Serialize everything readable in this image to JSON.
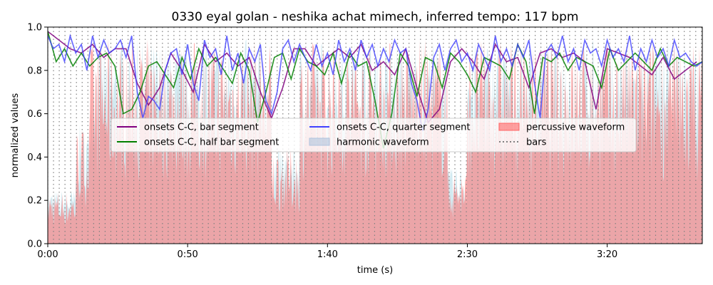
{
  "chart_data": {
    "type": "line",
    "title": "0330 eyal golan - neshika achat mimech, inferred tempo: 117 bpm",
    "xlabel": "time (s)",
    "ylabel": "normalized values",
    "xlim": [
      0,
      234
    ],
    "ylim": [
      0,
      1.0
    ],
    "x_ticks": [
      {
        "value": 0,
        "label": "0:00"
      },
      {
        "value": 50,
        "label": "0:50"
      },
      {
        "value": 100,
        "label": "1:40"
      },
      {
        "value": 150,
        "label": "2:30"
      },
      {
        "value": 200,
        "label": "3:20"
      }
    ],
    "y_ticks": [
      {
        "value": 0.0,
        "label": "0.0"
      },
      {
        "value": 0.2,
        "label": "0.2"
      },
      {
        "value": 0.4,
        "label": "0.4"
      },
      {
        "value": 0.6,
        "label": "0.6"
      },
      {
        "value": 0.8,
        "label": "0.8"
      },
      {
        "value": 1.0,
        "label": "1.0"
      }
    ],
    "tempo_bpm": 117,
    "bar_interval_s": 2.05,
    "grid": false,
    "legend_position": "center",
    "legend": [
      {
        "label": "onsets C-C, bar segment",
        "kind": "line",
        "color": "#800080"
      },
      {
        "label": "onsets C-C, half bar segment",
        "kind": "line",
        "color": "#008000"
      },
      {
        "label": "onsets C-C, quarter segment",
        "kind": "line",
        "color": "#4040ff"
      },
      {
        "label": "harmonic waveform",
        "kind": "area",
        "color": "#b0c4de"
      },
      {
        "label": "percussive waveform",
        "kind": "area",
        "color": "#ff6666"
      },
      {
        "label": "bars",
        "kind": "dotted",
        "color": "#808080"
      }
    ],
    "series": [
      {
        "name": "onsets C-C, bar segment",
        "color": "#800080",
        "x": [
          0,
          4,
          8,
          12,
          16,
          20,
          24,
          28,
          32,
          36,
          40,
          44,
          48,
          52,
          56,
          60,
          64,
          68,
          72,
          76,
          80,
          84,
          88,
          92,
          96,
          100,
          104,
          108,
          112,
          116,
          120,
          124,
          128,
          132,
          136,
          140,
          144,
          148,
          152,
          156,
          160,
          164,
          168,
          172,
          176,
          180,
          184,
          188,
          192,
          196,
          200,
          204,
          208,
          212,
          216,
          220,
          224,
          228,
          232
        ],
        "y": [
          0.98,
          0.94,
          0.9,
          0.88,
          0.92,
          0.86,
          0.9,
          0.9,
          0.74,
          0.64,
          0.72,
          0.88,
          0.8,
          0.7,
          0.92,
          0.84,
          0.88,
          0.82,
          0.86,
          0.7,
          0.58,
          0.72,
          0.9,
          0.9,
          0.82,
          0.86,
          0.9,
          0.86,
          0.92,
          0.8,
          0.84,
          0.78,
          0.9,
          0.72,
          0.56,
          0.62,
          0.84,
          0.9,
          0.84,
          0.76,
          0.92,
          0.84,
          0.86,
          0.72,
          0.88,
          0.9,
          0.86,
          0.88,
          0.84,
          0.62,
          0.9,
          0.88,
          0.86,
          0.82,
          0.78,
          0.86,
          0.76,
          0.8,
          0.84
        ]
      },
      {
        "name": "onsets C-C, half bar segment",
        "color": "#008000",
        "x": [
          0,
          3,
          6,
          9,
          12,
          15,
          18,
          21,
          24,
          27,
          30,
          33,
          36,
          39,
          42,
          45,
          48,
          51,
          54,
          57,
          60,
          63,
          66,
          69,
          72,
          75,
          78,
          81,
          84,
          87,
          90,
          93,
          96,
          99,
          102,
          105,
          108,
          111,
          114,
          117,
          120,
          123,
          126,
          129,
          132,
          135,
          138,
          141,
          144,
          147,
          150,
          153,
          156,
          159,
          162,
          165,
          168,
          171,
          174,
          177,
          180,
          183,
          186,
          189,
          192,
          195,
          198,
          201,
          204,
          207,
          210,
          213,
          216,
          219,
          222,
          225,
          228,
          231,
          234
        ],
        "y": [
          0.98,
          0.84,
          0.9,
          0.82,
          0.88,
          0.82,
          0.86,
          0.88,
          0.82,
          0.6,
          0.62,
          0.7,
          0.82,
          0.84,
          0.78,
          0.72,
          0.86,
          0.76,
          0.9,
          0.82,
          0.86,
          0.8,
          0.74,
          0.88,
          0.8,
          0.56,
          0.7,
          0.86,
          0.88,
          0.76,
          0.9,
          0.84,
          0.82,
          0.78,
          0.88,
          0.74,
          0.88,
          0.82,
          0.84,
          0.66,
          0.44,
          0.6,
          0.88,
          0.82,
          0.68,
          0.86,
          0.84,
          0.72,
          0.88,
          0.84,
          0.78,
          0.7,
          0.86,
          0.84,
          0.82,
          0.76,
          0.92,
          0.84,
          0.6,
          0.86,
          0.84,
          0.88,
          0.8,
          0.86,
          0.84,
          0.82,
          0.72,
          0.9,
          0.8,
          0.84,
          0.88,
          0.84,
          0.8,
          0.9,
          0.82,
          0.86,
          0.84,
          0.82,
          0.84
        ]
      },
      {
        "name": "onsets C-C, quarter segment",
        "color": "#4040ff",
        "x": [
          0,
          2,
          4,
          6,
          8,
          10,
          12,
          14,
          16,
          18,
          20,
          22,
          24,
          26,
          28,
          30,
          32,
          34,
          36,
          38,
          40,
          42,
          44,
          46,
          48,
          50,
          52,
          54,
          56,
          58,
          60,
          62,
          64,
          66,
          68,
          70,
          72,
          74,
          76,
          78,
          80,
          82,
          84,
          86,
          88,
          90,
          92,
          94,
          96,
          98,
          100,
          102,
          104,
          106,
          108,
          110,
          112,
          114,
          116,
          118,
          120,
          122,
          124,
          126,
          128,
          130,
          132,
          134,
          136,
          138,
          140,
          142,
          144,
          146,
          148,
          150,
          152,
          154,
          156,
          158,
          160,
          162,
          164,
          166,
          168,
          170,
          172,
          174,
          176,
          178,
          180,
          182,
          184,
          186,
          188,
          190,
          192,
          194,
          196,
          198,
          200,
          202,
          204,
          206,
          208,
          210,
          212,
          214,
          216,
          218,
          220,
          222,
          224,
          226,
          228,
          230,
          232,
          234
        ],
        "y": [
          0.96,
          0.9,
          0.92,
          0.84,
          0.96,
          0.88,
          0.92,
          0.8,
          0.96,
          0.86,
          0.94,
          0.88,
          0.9,
          0.94,
          0.86,
          0.96,
          0.7,
          0.58,
          0.68,
          0.66,
          0.62,
          0.8,
          0.88,
          0.9,
          0.78,
          0.92,
          0.74,
          0.66,
          0.94,
          0.86,
          0.9,
          0.78,
          0.96,
          0.8,
          0.88,
          0.74,
          0.9,
          0.84,
          0.92,
          0.66,
          0.6,
          0.7,
          0.9,
          0.94,
          0.84,
          0.92,
          0.86,
          0.8,
          0.92,
          0.82,
          0.88,
          0.78,
          0.94,
          0.84,
          0.9,
          0.8,
          0.94,
          0.86,
          0.92,
          0.82,
          0.9,
          0.84,
          0.94,
          0.88,
          0.9,
          0.74,
          0.66,
          0.52,
          0.62,
          0.86,
          0.92,
          0.8,
          0.9,
          0.94,
          0.84,
          0.88,
          0.8,
          0.92,
          0.86,
          0.8,
          0.96,
          0.84,
          0.9,
          0.82,
          0.92,
          0.86,
          0.94,
          0.74,
          0.58,
          0.88,
          0.92,
          0.86,
          0.96,
          0.84,
          0.9,
          0.8,
          0.94,
          0.88,
          0.9,
          0.82,
          0.94,
          0.86,
          0.9,
          0.84,
          0.96,
          0.8,
          0.9,
          0.84,
          0.94,
          0.86,
          0.9,
          0.82,
          0.94,
          0.86,
          0.88,
          0.84,
          0.82,
          0.84
        ]
      }
    ]
  }
}
